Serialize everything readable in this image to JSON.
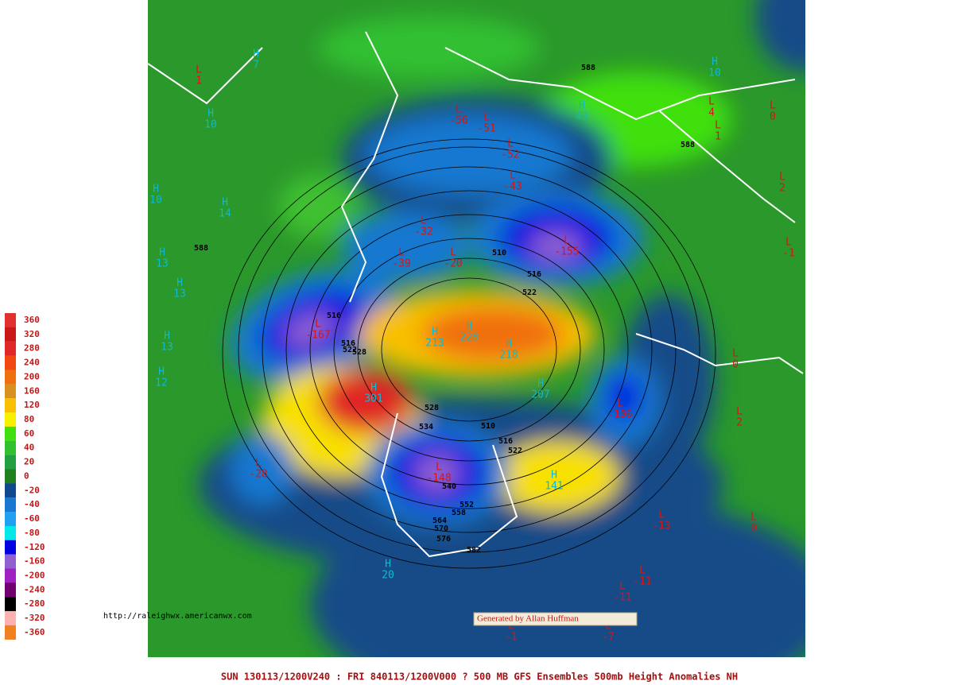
{
  "map": {
    "legend": [
      {
        "label": 360,
        "color": "#e03030"
      },
      {
        "label": 320,
        "color": "#c81818"
      },
      {
        "label": 280,
        "color": "#e02828"
      },
      {
        "label": 240,
        "color": "#f04810"
      },
      {
        "label": 200,
        "color": "#f07010"
      },
      {
        "label": 160,
        "color": "#d89020"
      },
      {
        "label": 120,
        "color": "#f8c000"
      },
      {
        "label": 80,
        "color": "#f8f000"
      },
      {
        "label": 60,
        "color": "#40e010"
      },
      {
        "label": 40,
        "color": "#30c030"
      },
      {
        "label": 20,
        "color": "#20a040"
      },
      {
        "label": 0,
        "color": "#208020"
      },
      {
        "label": -20,
        "color": "#104890"
      },
      {
        "label": -40,
        "color": "#1878d0"
      },
      {
        "label": -60,
        "color": "#20a0f0"
      },
      {
        "label": -80,
        "color": "#00e8e8"
      },
      {
        "label": -120,
        "color": "#0000e0"
      },
      {
        "label": -160,
        "color": "#9060d0"
      },
      {
        "label": -200,
        "color": "#a020c0"
      },
      {
        "label": -240,
        "color": "#700070"
      },
      {
        "label": -280,
        "color": "#000000"
      },
      {
        "label": -320,
        "color": "#ffb0b0"
      },
      {
        "label": -360,
        "color": "#f08020"
      }
    ],
    "high_color": "#10b8d0",
    "low_color": "#d01818",
    "centers": [
      {
        "type": "L",
        "value": 1
      },
      {
        "type": "H",
        "value": 7
      },
      {
        "type": "H",
        "value": 10
      },
      {
        "type": "H",
        "value": 10
      },
      {
        "type": "H",
        "value": 14
      },
      {
        "type": "H",
        "value": 13
      },
      {
        "type": "H",
        "value": 13
      },
      {
        "type": "H",
        "value": 13
      },
      {
        "type": "H",
        "value": 12
      },
      {
        "type": "L",
        "value": -56
      },
      {
        "type": "L",
        "value": -51
      },
      {
        "type": "L",
        "value": -52
      },
      {
        "type": "L",
        "value": -43
      },
      {
        "type": "L",
        "value": -32
      },
      {
        "type": "L",
        "value": -39
      },
      {
        "type": "L",
        "value": -20
      },
      {
        "type": "L",
        "value": -155
      },
      {
        "type": "H",
        "value": 43
      },
      {
        "type": "H",
        "value": 10
      },
      {
        "type": "L",
        "value": 4
      },
      {
        "type": "L",
        "value": 1
      },
      {
        "type": "L",
        "value": 0
      },
      {
        "type": "L",
        "value": 2
      },
      {
        "type": "L",
        "value": -1
      },
      {
        "type": "L",
        "value": -167
      },
      {
        "type": "H",
        "value": 301
      },
      {
        "type": "H",
        "value": 213
      },
      {
        "type": "H",
        "value": 228
      },
      {
        "type": "H",
        "value": 218
      },
      {
        "type": "H",
        "value": 207
      },
      {
        "type": "L",
        "value": -106
      },
      {
        "type": "L",
        "value": -28
      },
      {
        "type": "L",
        "value": -148
      },
      {
        "type": "H",
        "value": 141
      },
      {
        "type": "L",
        "value": -13
      },
      {
        "type": "L",
        "value": 0
      },
      {
        "type": "L",
        "value": 0
      },
      {
        "type": "L",
        "value": 2
      },
      {
        "type": "L",
        "value": -11
      },
      {
        "type": "L",
        "value": -11
      },
      {
        "type": "H",
        "value": 20
      },
      {
        "type": "L",
        "value": -1
      },
      {
        "type": "L",
        "value": -7
      }
    ],
    "contour_labels": [
      588,
      588,
      588,
      510,
      516,
      522,
      516,
      516,
      522,
      528,
      528,
      534,
      510,
      516,
      522,
      540,
      552,
      558,
      564,
      570,
      576,
      582
    ],
    "footer": "SUN 130113/1200V240 : FRI 840113/1200V000  ? 500 MB GFS Ensembles 500mb Height Anomalies NH",
    "url": "http://raleighwx.americanwx.com",
    "credit": "Generated by Allan Huffman"
  }
}
